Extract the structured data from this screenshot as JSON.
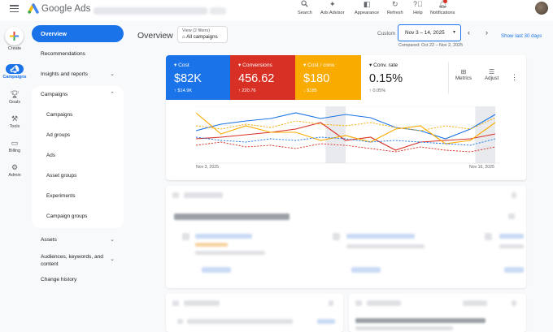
{
  "app": {
    "product_name": "Google Ads",
    "accent_color": "#1a73e8"
  },
  "topbar": {
    "items": [
      {
        "label": "Search",
        "icon": "search-icon"
      },
      {
        "label": "Ads Advisor",
        "icon": "sparkle-icon"
      },
      {
        "label": "Appearance",
        "icon": "appearance-icon"
      },
      {
        "label": "Refresh",
        "icon": "refresh-icon"
      },
      {
        "label": "Help",
        "icon": "help-icon"
      },
      {
        "label": "Notifications",
        "icon": "bell-icon"
      }
    ]
  },
  "rail": {
    "create_label": "Create",
    "items": [
      {
        "label": "Campaigns",
        "icon": "campaigns-icon",
        "active": true
      },
      {
        "label": "Goals",
        "icon": "trophy-icon"
      },
      {
        "label": "Tools",
        "icon": "tools-icon"
      },
      {
        "label": "Billing",
        "icon": "billing-icon"
      },
      {
        "label": "Admin",
        "icon": "gear-icon"
      }
    ]
  },
  "nav": {
    "overview": "Overview",
    "recommendations": "Recommendations",
    "insights": "Insights and reports",
    "campaigns_group": "Campaigns",
    "sub_items": [
      "Campaigns",
      "Ad groups",
      "Ads",
      "Asset groups",
      "Experiments",
      "Campaign groups"
    ],
    "assets": "Assets",
    "audiences_line1": "Audiences, keywords, and",
    "audiences_line2": "content",
    "change_history": "Change history"
  },
  "header": {
    "title": "Overview",
    "view_filters": "View (2 filters)",
    "view_value": "All campaigns",
    "custom_label": "Custom",
    "date_range": "Nov 3 – 14, 2025",
    "compared": "Compared: Oct 22 – Nov 2, 2025",
    "show_last": "Show last 30 days"
  },
  "metrics": [
    {
      "label": "Cost",
      "value": "$82K",
      "change": "↑ $14.9K",
      "color": "#1a73e8"
    },
    {
      "label": "Conversions",
      "value": "456.62",
      "change": "↑ 220.76",
      "color": "#d93025"
    },
    {
      "label": "Cost / conv.",
      "value": "$180",
      "change": "↓ $185",
      "color": "#f9ab00"
    },
    {
      "label": "Conv. rate",
      "value": "0.15%",
      "change": "↑ 0.05%",
      "color": "#ffffff"
    }
  ],
  "card_tools": {
    "metrics": "Metrics",
    "adjust": "Adjust"
  },
  "chart_data": {
    "type": "line",
    "x_start_label": "Nov 3, 2025",
    "x_end_label": "Nov 16, 2025",
    "grid": true,
    "series": [
      {
        "color": "#1a73e8",
        "style": "solid",
        "values": [
          40,
          48,
          52,
          55,
          62,
          55,
          60,
          56,
          44,
          40,
          30,
          42,
          60
        ]
      },
      {
        "color": "#d93025",
        "style": "solid",
        "values": [
          30,
          32,
          35,
          38,
          42,
          50,
          28,
          32,
          16,
          26,
          28,
          30,
          36
        ]
      },
      {
        "color": "#f9ab00",
        "style": "solid",
        "values": [
          62,
          36,
          46,
          38,
          38,
          28,
          34,
          26,
          42,
          46,
          24,
          28,
          50
        ]
      },
      {
        "color": "#1a73e8",
        "style": "dashed",
        "values": [
          32,
          28,
          26,
          30,
          28,
          32,
          30,
          26,
          28,
          26,
          24,
          22,
          30
        ]
      },
      {
        "color": "#d93025",
        "style": "dashed",
        "values": [
          22,
          26,
          20,
          22,
          18,
          24,
          22,
          18,
          14,
          20,
          16,
          14,
          20
        ]
      },
      {
        "color": "#f9ab00",
        "style": "dashed",
        "values": [
          46,
          42,
          48,
          44,
          52,
          48,
          46,
          50,
          44,
          40,
          46,
          42,
          56
        ]
      }
    ],
    "shaded_ranges": [
      [
        5,
        6
      ],
      [
        11,
        12
      ]
    ]
  }
}
